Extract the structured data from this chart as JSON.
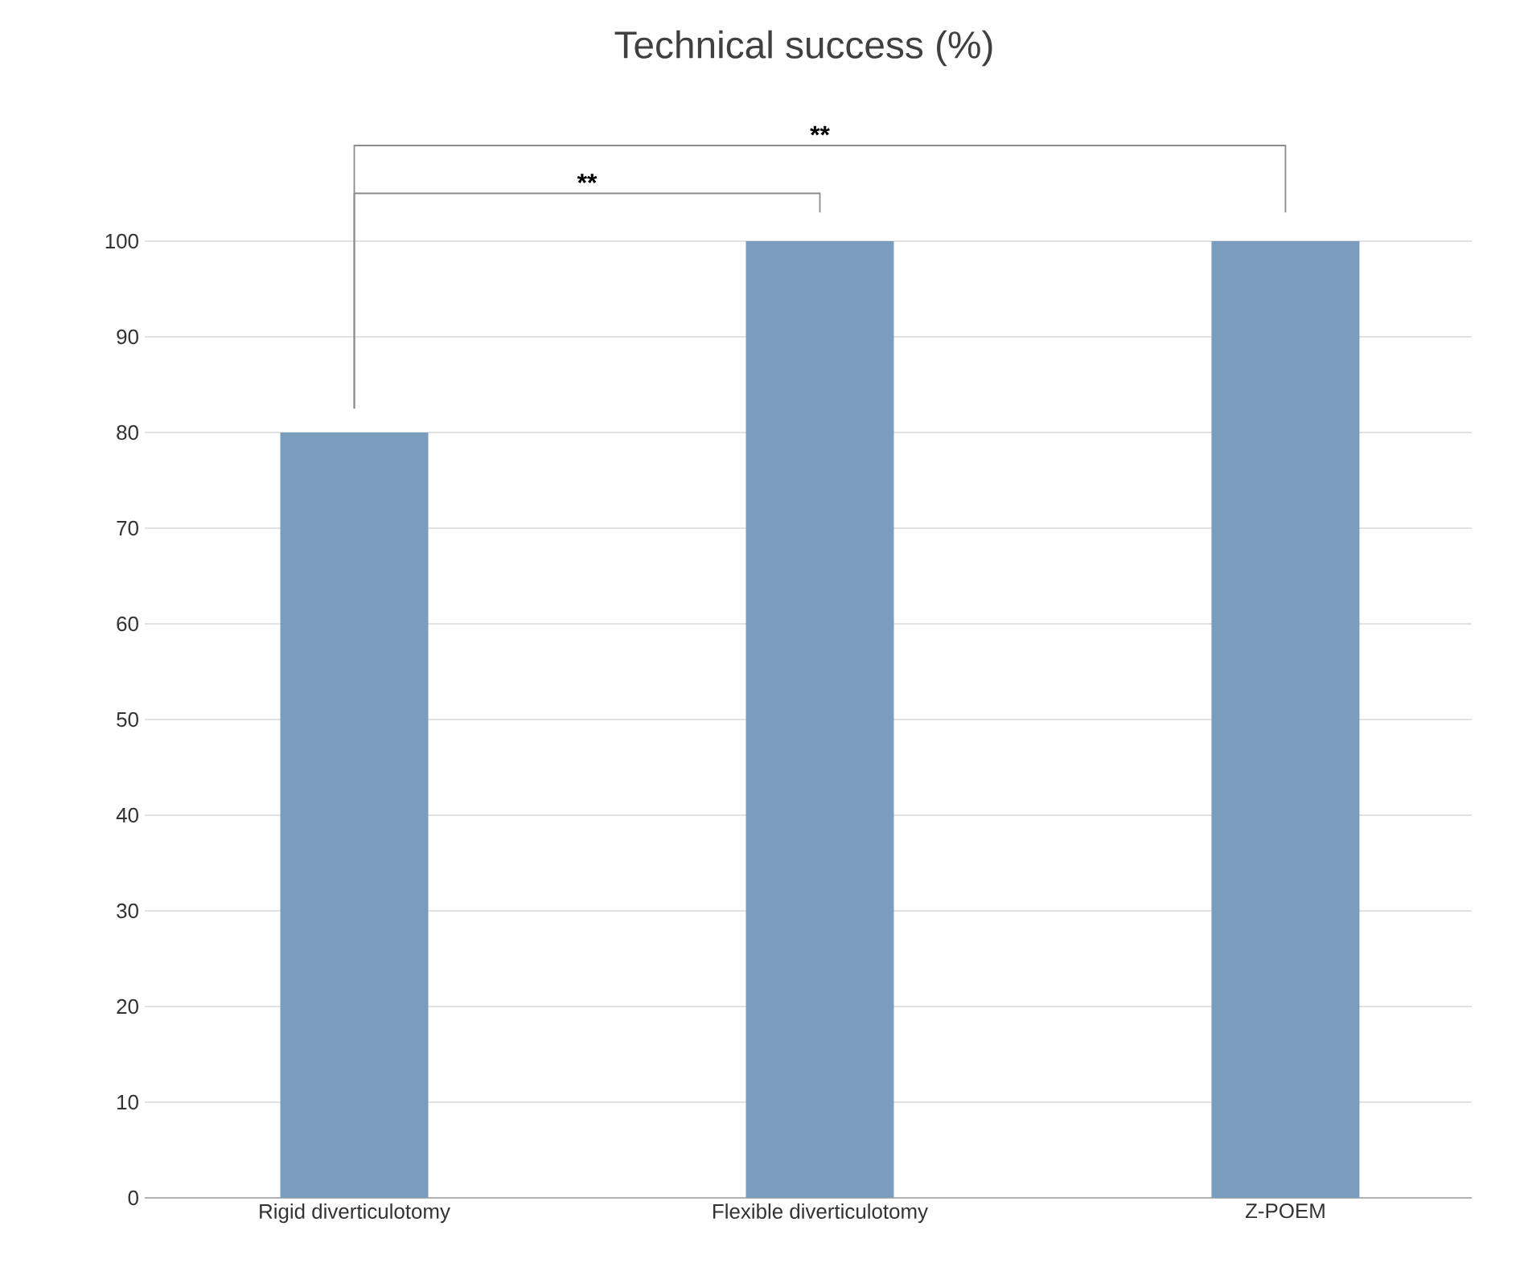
{
  "chart_data": {
    "type": "bar",
    "title": "Technical success (%)",
    "categories": [
      "Rigid diverticulotomy",
      "Flexible diverticulotomy",
      "Z-POEM"
    ],
    "values": [
      80,
      100,
      100
    ],
    "color": "#7a9cbd",
    "ylim": [
      0,
      100
    ],
    "yticks": [
      0,
      10,
      20,
      30,
      40,
      50,
      60,
      70,
      80,
      90,
      100
    ],
    "grid": "y",
    "annotations": [
      "**",
      "**"
    ]
  }
}
